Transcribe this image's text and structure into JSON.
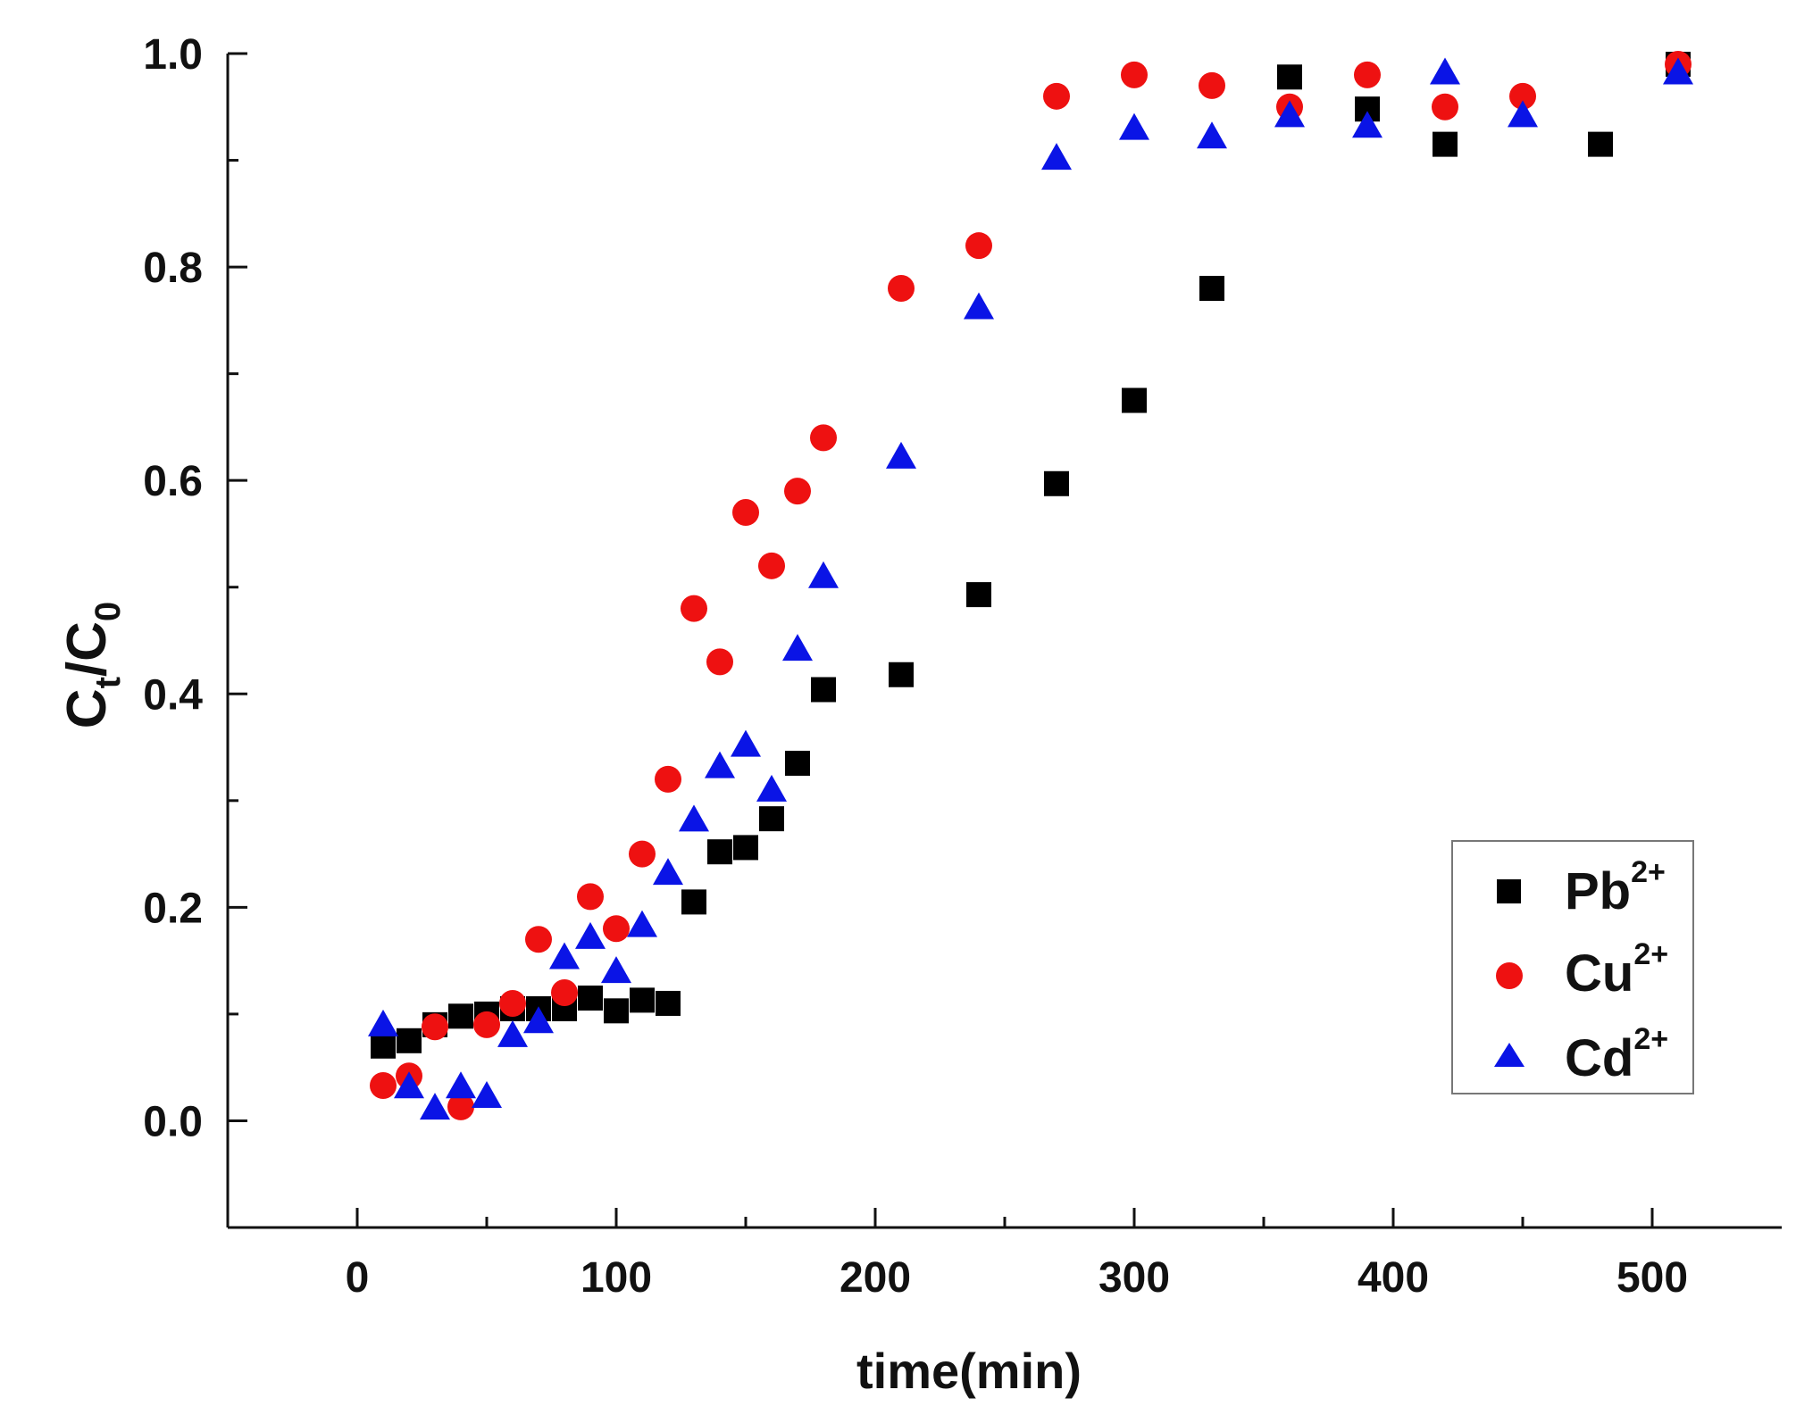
{
  "chart_data": {
    "type": "scatter",
    "title": "",
    "xlabel": "time(min)",
    "ylabel": {
      "c1": "C",
      "s1": "t",
      "slash": "/",
      "c2": "C",
      "s2": "0"
    },
    "xlim": [
      -50,
      550
    ],
    "ylim": [
      -0.1,
      1.0
    ],
    "x_ticks": [
      0,
      100,
      200,
      300,
      400,
      500
    ],
    "x_tick_labels": [
      "0",
      "100",
      "200",
      "300",
      "400",
      "500"
    ],
    "x_minor_ticks": [
      50,
      150,
      250,
      350,
      450
    ],
    "y_ticks": [
      0.0,
      0.2,
      0.4,
      0.6,
      0.8,
      1.0
    ],
    "y_tick_labels": [
      "0.0",
      "0.2",
      "0.4",
      "0.6",
      "0.8",
      "1.0"
    ],
    "y_minor_ticks": [
      -0.1,
      0.1,
      0.3,
      0.5,
      0.7,
      0.9
    ],
    "grid": false,
    "legend": "right",
    "series": [
      {
        "name": "Pb2+",
        "ion": "Pb",
        "charge": "2+",
        "marker": "square",
        "color": "#000000",
        "x": [
          10,
          20,
          30,
          40,
          50,
          60,
          70,
          80,
          90,
          100,
          110,
          120,
          130,
          140,
          150,
          160,
          170,
          180,
          210,
          240,
          270,
          300,
          330,
          360,
          390,
          420,
          480,
          510
        ],
        "y": [
          0.07,
          0.075,
          0.09,
          0.098,
          0.1,
          0.105,
          0.105,
          0.105,
          0.115,
          0.103,
          0.113,
          0.11,
          0.205,
          0.252,
          0.256,
          0.283,
          0.335,
          0.404,
          0.418,
          0.493,
          0.597,
          0.675,
          0.78,
          0.978,
          0.948,
          0.915,
          0.915,
          0.99
        ]
      },
      {
        "name": "Cu2+",
        "ion": "Cu",
        "charge": "2+",
        "marker": "circle",
        "color": "#ee1111",
        "x": [
          10,
          20,
          30,
          40,
          50,
          60,
          70,
          80,
          90,
          100,
          110,
          120,
          130,
          140,
          150,
          160,
          170,
          180,
          210,
          240,
          270,
          300,
          330,
          360,
          390,
          420,
          450,
          510
        ],
        "y": [
          0.033,
          0.042,
          0.088,
          0.013,
          0.09,
          0.11,
          0.17,
          0.12,
          0.21,
          0.18,
          0.25,
          0.32,
          0.48,
          0.43,
          0.57,
          0.52,
          0.59,
          0.64,
          0.78,
          0.82,
          0.96,
          0.98,
          0.97,
          0.95,
          0.98,
          0.95,
          0.96,
          0.99
        ]
      },
      {
        "name": "Cd2+",
        "ion": "Cd",
        "charge": "2+",
        "marker": "triangle",
        "color": "#0a14e6",
        "x": [
          10,
          20,
          30,
          40,
          50,
          60,
          70,
          80,
          90,
          100,
          110,
          120,
          130,
          140,
          150,
          160,
          170,
          180,
          210,
          240,
          270,
          300,
          330,
          360,
          390,
          420,
          450,
          510
        ],
        "y": [
          0.09,
          0.032,
          0.012,
          0.032,
          0.023,
          0.08,
          0.093,
          0.153,
          0.172,
          0.14,
          0.183,
          0.232,
          0.282,
          0.332,
          0.352,
          0.31,
          0.442,
          0.51,
          0.622,
          0.762,
          0.902,
          0.93,
          0.922,
          0.942,
          0.932,
          0.982,
          0.942,
          0.982
        ]
      }
    ]
  }
}
